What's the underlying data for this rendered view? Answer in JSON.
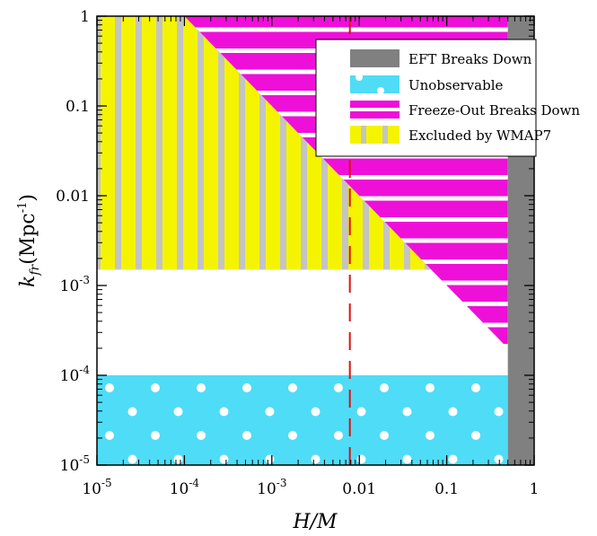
{
  "chart_data": {
    "type": "area",
    "xlabel": "H/M",
    "ylabel": "k_fr (Mpc^-1)",
    "ylabel_main": "k",
    "ylabel_sub": "fr",
    "ylabel_unit": "(Mpc",
    "ylabel_sup": "-1",
    "ylabel_close": ")",
    "x_scale": "log",
    "y_scale": "log",
    "xlim": [
      1e-05,
      1
    ],
    "ylim": [
      1e-05,
      1
    ],
    "x_ticks": [
      {
        "value": 1e-05,
        "base": "10",
        "exp": "-5"
      },
      {
        "value": 0.0001,
        "base": "10",
        "exp": "-4"
      },
      {
        "value": 0.001,
        "base": "10",
        "exp": "-3"
      },
      {
        "value": 0.01,
        "text": "0.01"
      },
      {
        "value": 0.1,
        "text": "0.1"
      },
      {
        "value": 1,
        "text": "1"
      }
    ],
    "y_ticks": [
      {
        "value": 1,
        "text": "1"
      },
      {
        "value": 0.1,
        "text": "0.1"
      },
      {
        "value": 0.01,
        "text": "0.01"
      },
      {
        "value": 0.001,
        "base": "10",
        "exp": "-3"
      },
      {
        "value": 0.0001,
        "base": "10",
        "exp": "-4"
      },
      {
        "value": 1e-05,
        "base": "10",
        "exp": "-5"
      }
    ],
    "regions": [
      {
        "name": "EFT Breaks Down",
        "color": "#808080",
        "pattern": "solid",
        "x_range": [
          0.5,
          1
        ],
        "y_range": [
          1e-05,
          1
        ]
      },
      {
        "name": "Unobservable",
        "color": "#4fdcf7",
        "pattern": "white-dots",
        "x_range": [
          1e-05,
          0.5
        ],
        "y_range": [
          1e-05,
          0.0001
        ]
      },
      {
        "name": "Freeze-Out Breaks Down",
        "color": "#ee10d8",
        "pattern": "white-horizontal-stripes",
        "boundary": "k_fr > 0.0001 * (H/M)^-1",
        "x_range": [
          0.0001,
          0.5
        ],
        "y_range": [
          0.0002,
          1
        ]
      },
      {
        "name": "Excluded by WMAP7",
        "color": "#f4f400",
        "pattern": "gray-vertical-stripes",
        "boundary": "k_fr > 0.0015 and below the freeze-out line",
        "x_range": [
          1e-05,
          0.067
        ],
        "y_range": [
          0.0015,
          1
        ]
      }
    ],
    "lines": [
      {
        "type": "vertical",
        "x": 0.0078,
        "style": "dashed",
        "color": "#e01010"
      }
    ],
    "legend_position": "top-right",
    "grid": false
  },
  "colors": {
    "gray": "#808080",
    "cyan": "#4fdcf7",
    "magenta": "#ee10d8",
    "yellow": "#f4f400",
    "stripe_gray": "#c4c4c4",
    "red_dash": "#e01010"
  }
}
